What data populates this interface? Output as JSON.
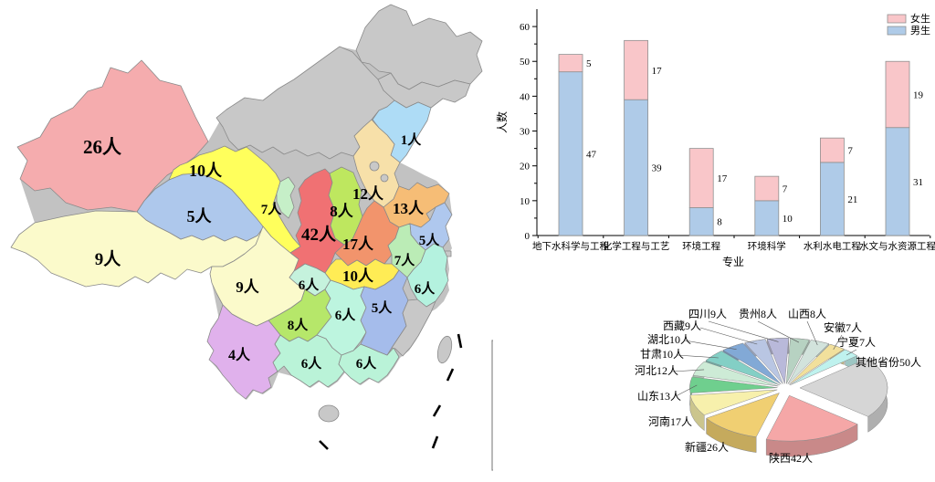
{
  "map": {
    "labels": {
      "xinjiang": "26人",
      "xizang": "9人",
      "qinghai": "5人",
      "gansu": "10人",
      "ningxia": "7人",
      "shaanxi": "42人",
      "shanxi": "8人",
      "hebei": "12人",
      "shandong": "13人",
      "liaoning": "1人",
      "henan": "17人",
      "jiangsu": "5人",
      "anhui": "7人",
      "hubei": "10人",
      "sichuan": "9人",
      "chongqing": "6人",
      "guizhou": "8人",
      "yunnan": "4人",
      "hunan": "6人",
      "jiangxi": "5人",
      "zhejiang": "6人",
      "guangxi": "6人",
      "guangdong": "6人"
    },
    "colors": {
      "neutral": "#C8C8C8",
      "backdrop": "#C2C2C2",
      "xinjiang": "#F5ACAE",
      "xizang": "#FBFACB",
      "qinghai": "#AEC8EC",
      "gansu": "#FFFF5C",
      "ningxia": "#C6EFC8",
      "shaanxi": "#F07173",
      "shanxi": "#BEE75F",
      "hebei": "#F7E0A9",
      "shandong": "#F6BD76",
      "henan": "#F2946C",
      "jiangsu": "#AFC8EE",
      "anhui": "#BBECB6",
      "hubei": "#FFEC55",
      "sichuan": "#FBFACB",
      "chongqing": "#C5F2DD",
      "guizhou": "#B6E76A",
      "yunnan": "#E0B1EC",
      "hunan": "#BDF5DF",
      "jiangxi": "#A5BCEB",
      "zhejiang": "#B4F2DF",
      "guangxi": "#BAF3D8",
      "guangdong": "#BAF3D8",
      "liaoning": "#AEDCF6"
    }
  },
  "chart_data": [
    {
      "type": "bar",
      "stacked": true,
      "categories": [
        "地下水科学与工程",
        "化学工程与工艺",
        "环境工程",
        "环境科学",
        "水利水电工程",
        "水文与水资源工程"
      ],
      "series": [
        {
          "name": "男生",
          "values": [
            47,
            39,
            8,
            10,
            21,
            31
          ],
          "color": "#AFCBE8"
        },
        {
          "name": "女生",
          "values": [
            5,
            17,
            17,
            7,
            7,
            19
          ],
          "color": "#F9C6C9"
        }
      ],
      "xlabel": "专业",
      "ylabel": "人数",
      "ylim": [
        0,
        65
      ],
      "yticks": [
        0,
        10,
        20,
        30,
        40,
        50,
        60
      ],
      "legend_position": "top-right",
      "legend_order": [
        "女生",
        "男生"
      ]
    },
    {
      "type": "pie",
      "labels": [
        "其他省份",
        "陕西",
        "新疆",
        "河南",
        "山东",
        "河北",
        "甘肃",
        "湖北",
        "西藏",
        "四川",
        "贵州",
        "山西",
        "安徽",
        "宁夏"
      ],
      "values": [
        50,
        42,
        26,
        17,
        13,
        12,
        10,
        10,
        9,
        9,
        8,
        8,
        7,
        7
      ],
      "label_texts": [
        "其他省份50人",
        "陕西42人",
        "新疆26人",
        "河南17人",
        "山东13人",
        "河北12人",
        "甘肃10人",
        "湖北10人",
        "西藏9人",
        "四川9人",
        "贵州8人",
        "山西8人",
        "安徽7人",
        "宁夏7人"
      ],
      "colors": [
        "#D6D6D6",
        "#F5A7A7",
        "#F0CF72",
        "#F7F0AC",
        "#6FCF8E",
        "#CDEBD6",
        "#83CFC5",
        "#82A9D6",
        "#B9C6E3",
        "#B9B9DA",
        "#B7D2C2",
        "#D2E3DC",
        "#F2E09C",
        "#BFF2EE"
      ],
      "start_angle": -40,
      "total": 228
    }
  ]
}
